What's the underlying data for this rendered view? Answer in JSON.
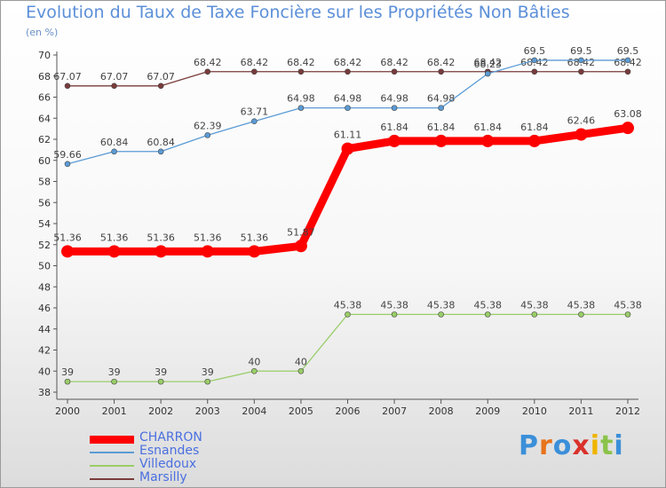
{
  "chart_data": {
    "type": "line",
    "title": "Evolution du Taux de Taxe Foncière sur les Propriétés Non Bâties",
    "ylabel": "(en %)",
    "xlabel": "",
    "ylim": [
      38,
      70
    ],
    "yticks": [
      38,
      40,
      42,
      44,
      46,
      48,
      50,
      52,
      54,
      56,
      58,
      60,
      62,
      64,
      66,
      68,
      70
    ],
    "categories": [
      "2000",
      "2001",
      "2002",
      "2003",
      "2004",
      "2005",
      "2006",
      "2007",
      "2008",
      "2009",
      "2010",
      "2011",
      "2012"
    ],
    "grid": false,
    "legend": "bottom",
    "series": [
      {
        "name": "Marsilly",
        "color": "#7a3b3b",
        "values": [
          67.07,
          67.07,
          67.07,
          68.42,
          68.42,
          68.42,
          68.42,
          68.42,
          68.42,
          68.42,
          68.42,
          68.42,
          68.42
        ],
        "labels": [
          "67.07",
          "67.07",
          "67.07",
          "68.42",
          "68.42",
          "68.42",
          "68.42",
          "68.42",
          "68.42",
          "68.42",
          "68.42",
          "68.42",
          "68.42"
        ]
      },
      {
        "name": "Esnandes",
        "color": "#5b9bd5",
        "values": [
          59.66,
          60.84,
          60.84,
          62.39,
          63.71,
          64.98,
          64.98,
          64.98,
          64.98,
          68.23,
          69.5,
          69.5,
          69.5
        ],
        "labels": [
          "59.66",
          "60.84",
          "60.84",
          "62.39",
          "63.71",
          "64.98",
          "64.98",
          "64.98",
          "64.98",
          "68.23",
          "69.5",
          "69.5",
          "69.5"
        ]
      },
      {
        "name": "Villedoux",
        "color": "#9acd68",
        "values": [
          39,
          39,
          39,
          39,
          40,
          40,
          45.38,
          45.38,
          45.38,
          45.38,
          45.38,
          45.38,
          45.38
        ],
        "labels": [
          "39",
          "39",
          "39",
          "39",
          "40",
          "40",
          "45.38",
          "45.38",
          "45.38",
          "45.38",
          "45.38",
          "45.38",
          "45.38"
        ]
      },
      {
        "name": "CHARRON",
        "color": "#ff0000",
        "bold": true,
        "values": [
          51.36,
          51.36,
          51.36,
          51.36,
          51.36,
          51.87,
          61.11,
          61.84,
          61.84,
          61.84,
          61.84,
          62.46,
          63.08
        ],
        "labels": [
          "51.36",
          "51.36",
          "51.36",
          "51.36",
          "51.36",
          "51.87",
          "61.11",
          "61.84",
          "61.84",
          "61.84",
          "61.84",
          "62.46",
          "63.08"
        ]
      }
    ],
    "legend_order": [
      "CHARRON",
      "Esnandes",
      "Villedoux",
      "Marsilly"
    ]
  },
  "logo": {
    "text": "Proxiti",
    "colors": [
      "#3b8fd9",
      "#e8731c",
      "#3b8fd9",
      "#d9322b",
      "#f0b400",
      "#8bc34a",
      "#3b8fd9"
    ]
  }
}
